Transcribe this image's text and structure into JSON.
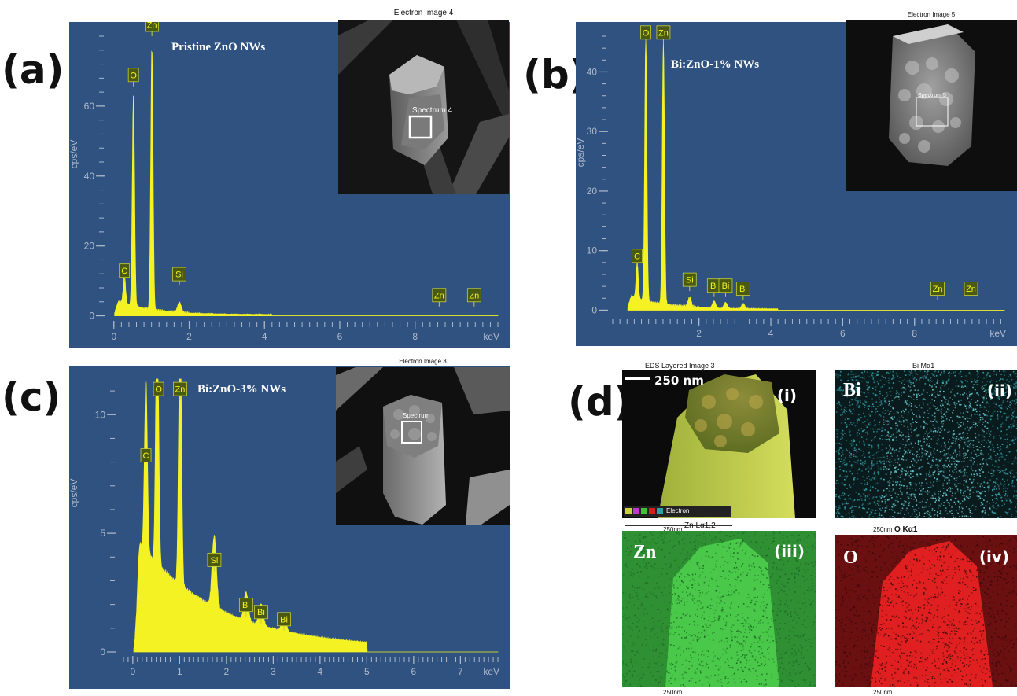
{
  "panels": {
    "a": {
      "letter": "(a)"
    },
    "b": {
      "letter": "(b)"
    },
    "c": {
      "letter": "(c)"
    },
    "d": {
      "letter": "(d)"
    }
  },
  "insets": {
    "a": {
      "caption": "Electron Image 4",
      "roi_label": "Spectrum 4"
    },
    "b": {
      "caption": "Electron Image 5",
      "roi_label": "Spectrum 5"
    },
    "c": {
      "caption": "Electron Image 3",
      "roi_label": "Spectrum"
    }
  },
  "maps": {
    "i": {
      "caption": "EDS Layered Image 3",
      "num": "(i)",
      "scale": "250 nm",
      "bottom_scale": "250nm",
      "legend_text": "Electron",
      "color": "#c9d23a"
    },
    "ii": {
      "caption": "Bi Mα1",
      "num": "(ii)",
      "element": "Bi",
      "bottom_scale": "250nm",
      "color": "#2fa0a8"
    },
    "iii": {
      "caption": "Zn Lα1,2",
      "num": "(iii)",
      "element": "Zn",
      "bottom_scale": "250nm",
      "color": "#3fc23a"
    },
    "iv": {
      "caption": "O Kα1",
      "num": "(iv)",
      "element": "O",
      "bottom_scale": "250nm",
      "color": "#d41d1d"
    }
  },
  "colors": {
    "spectrum_bg": "#2f5280",
    "spectrum_fill": "#f4f223",
    "peak_label_bg": "#4a5a12",
    "peak_label_text": "#f4f223",
    "axis_text": "#aeb9cc"
  },
  "chart_data": [
    {
      "id": "a",
      "type": "area",
      "title": "Pristine ZnO NWs",
      "xlabel": "keV",
      "ylabel": "cps/eV",
      "xlim": [
        -0.1,
        10.2
      ],
      "ylim": [
        -1,
        80
      ],
      "xticks": [
        0,
        2,
        4,
        6,
        8
      ],
      "yticks": [
        0,
        20,
        40,
        60
      ],
      "peaks": [
        {
          "label": "C",
          "x": 0.28,
          "y": 8
        },
        {
          "label": "O",
          "x": 0.52,
          "y": 60
        },
        {
          "label": "Zn",
          "x": 1.01,
          "y": 75
        },
        {
          "label": "Si",
          "x": 1.74,
          "y": 3
        },
        {
          "label": "Zn",
          "x": 8.64,
          "y": 0.3
        },
        {
          "label": "Zn",
          "x": 9.57,
          "y": 0.2
        }
      ],
      "peak_labels": [
        {
          "text": "C",
          "x": 0.28,
          "y": 11
        },
        {
          "text": "O",
          "x": 0.52,
          "y": 67
        },
        {
          "text": "Zn",
          "x": 1.01,
          "y": 86
        },
        {
          "text": "Si",
          "x": 1.74,
          "y": 10
        },
        {
          "text": "Zn",
          "x": 8.64,
          "y": 4
        },
        {
          "text": "Zn",
          "x": 9.57,
          "y": 4
        }
      ]
    },
    {
      "id": "b",
      "type": "area",
      "title": "Bi:ZnO-1% NWs",
      "xlabel": "keV",
      "ylabel": "cps/eV",
      "xlim": [
        -0.4,
        10.5
      ],
      "ylim": [
        -1,
        46
      ],
      "xticks": [
        2,
        4,
        6,
        8
      ],
      "yticks": [
        0,
        10,
        20,
        30,
        40
      ],
      "peaks": [
        {
          "label": "C",
          "x": 0.28,
          "y": 6
        },
        {
          "label": "O",
          "x": 0.52,
          "y": 44
        },
        {
          "label": "Zn",
          "x": 1.01,
          "y": 44
        },
        {
          "label": "Si",
          "x": 1.74,
          "y": 1.5
        },
        {
          "label": "Bi",
          "x": 2.42,
          "y": 1.2
        },
        {
          "label": "Bi",
          "x": 2.74,
          "y": 1.0
        },
        {
          "label": "Bi",
          "x": 3.23,
          "y": 0.8
        },
        {
          "label": "Zn",
          "x": 8.64,
          "y": 0.2
        },
        {
          "label": "Zn",
          "x": 9.57,
          "y": 0.2
        }
      ],
      "peak_labels": [
        {
          "text": "C",
          "x": 0.28,
          "y": 8
        },
        {
          "text": "O",
          "x": 0.52,
          "y": 45.5
        },
        {
          "text": "Zn",
          "x": 1.01,
          "y": 45.5
        },
        {
          "text": "Si",
          "x": 1.74,
          "y": 4
        },
        {
          "text": "Bi",
          "x": 2.42,
          "y": 3
        },
        {
          "text": "Bi",
          "x": 2.74,
          "y": 3
        },
        {
          "text": "Bi",
          "x": 3.23,
          "y": 2.5
        },
        {
          "text": "Zn",
          "x": 8.64,
          "y": 2.5
        },
        {
          "text": "Zn",
          "x": 9.57,
          "y": 2.5
        }
      ]
    },
    {
      "id": "c",
      "type": "area",
      "title": "Bi:ZnO-3% NWs",
      "xlabel": "keV",
      "ylabel": "cps/eV",
      "xlim": [
        -0.25,
        7.8
      ],
      "ylim": [
        -0.1,
        11.5
      ],
      "xticks": [
        0,
        1,
        2,
        3,
        4,
        5,
        6,
        7
      ],
      "yticks": [
        0,
        5,
        10
      ],
      "peaks": [
        {
          "label": "C",
          "x": 0.28,
          "y": 7.3
        },
        {
          "label": "O",
          "x": 0.52,
          "y": 11.5
        },
        {
          "label": "Zn",
          "x": 1.01,
          "y": 11.5
        },
        {
          "label": "Si",
          "x": 1.74,
          "y": 3.0
        },
        {
          "label": "Bi",
          "x": 2.42,
          "y": 1.2
        },
        {
          "label": "Bi",
          "x": 2.74,
          "y": 0.9
        },
        {
          "label": "Bi",
          "x": 3.23,
          "y": 0.7
        }
      ],
      "peak_labels": [
        {
          "text": "C",
          "x": 0.28,
          "y": 8.0
        },
        {
          "text": "O",
          "x": 0.55,
          "y": 10.8
        },
        {
          "text": "Zn",
          "x": 1.01,
          "y": 10.8
        },
        {
          "text": "Si",
          "x": 1.74,
          "y": 3.6
        },
        {
          "text": "Bi",
          "x": 2.42,
          "y": 1.7
        },
        {
          "text": "Bi",
          "x": 2.74,
          "y": 1.4
        },
        {
          "text": "Bi",
          "x": 3.23,
          "y": 1.1
        }
      ]
    }
  ]
}
